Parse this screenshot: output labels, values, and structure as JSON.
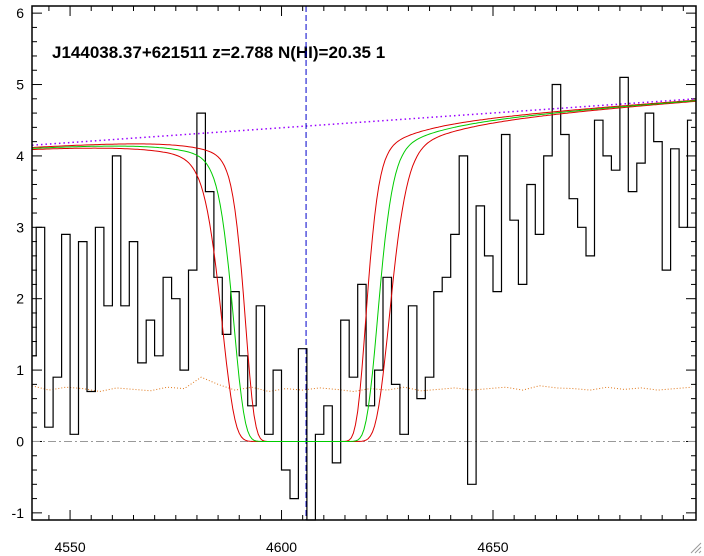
{
  "chart_data": {
    "type": "line",
    "title": "J144038.37+621511 z=2.788 N(HI)=20.35 1",
    "xlabel": "",
    "ylabel": "",
    "xlim": [
      4541,
      4698
    ],
    "ylim": [
      -1.1,
      6.1
    ],
    "x_ticks": [
      4550,
      4600,
      4650
    ],
    "y_ticks": [
      -1,
      0,
      1,
      2,
      3,
      4,
      5,
      6
    ],
    "grid": false,
    "legend": "none",
    "colors": {
      "flux": "#000000",
      "error": "#e07a1f",
      "continuum": "#9900ff",
      "model": "#00cc00",
      "model_bounds": "#dd0000",
      "center_marker": "#0000cc",
      "zero_line": "#999999"
    },
    "center_wavelength": 4605.8,
    "zero_level": 0,
    "continuum": {
      "x": [
        4541,
        4698
      ],
      "y": [
        4.15,
        4.8
      ]
    },
    "profile": {
      "center": 4605.7,
      "half_width_center": 8.6,
      "half_width_low": 7.2,
      "half_width_high": 10.0,
      "wing_scale": 4.2,
      "dlambda_boundary": 1.2
    },
    "flux": {
      "x": [
        4541,
        4543,
        4545,
        4547,
        4549,
        4551,
        4553,
        4555,
        4557,
        4559,
        4561,
        4563,
        4565,
        4567,
        4569,
        4571,
        4573,
        4575,
        4577,
        4579,
        4581,
        4583,
        4585,
        4587,
        4589,
        4591,
        4593,
        4595,
        4597,
        4599,
        4601,
        4603,
        4605,
        4607,
        4609,
        4611,
        4613,
        4615,
        4617,
        4619,
        4621,
        4623,
        4625,
        4627,
        4629,
        4631,
        4633,
        4635,
        4637,
        4639,
        4641,
        4643,
        4645,
        4647,
        4649,
        4651,
        4653,
        4655,
        4657,
        4659,
        4661,
        4663,
        4665,
        4667,
        4669,
        4671,
        4673,
        4675,
        4677,
        4679,
        4681,
        4683,
        4685,
        4687,
        4689,
        4691,
        4693,
        4695,
        4697
      ],
      "y": [
        1.2,
        3.0,
        0.2,
        0.9,
        2.9,
        0.1,
        2.8,
        0.7,
        3.0,
        1.9,
        4.0,
        1.9,
        2.8,
        1.1,
        1.7,
        1.2,
        2.3,
        2.0,
        1.0,
        2.4,
        4.6,
        3.5,
        2.3,
        1.5,
        2.1,
        1.2,
        0.5,
        1.9,
        0.1,
        1.0,
        -0.4,
        -0.8,
        1.3,
        -1.1,
        0.1,
        0.5,
        -0.3,
        1.7,
        0.9,
        2.2,
        0.5,
        1.0,
        2.3,
        0.8,
        0.1,
        1.9,
        0.6,
        0.9,
        2.1,
        2.3,
        2.9,
        4.0,
        -0.6,
        3.3,
        2.6,
        2.1,
        4.3,
        3.1,
        2.2,
        3.6,
        2.9,
        4.0,
        5.0,
        4.3,
        3.4,
        3.0,
        2.6,
        4.5,
        4.0,
        3.8,
        5.1,
        3.5,
        3.9,
        4.6,
        4.2,
        2.4,
        4.1,
        3.0,
        4.5
      ]
    },
    "error": {
      "x": [
        4541,
        4545,
        4549,
        4553,
        4557,
        4561,
        4565,
        4569,
        4573,
        4577,
        4581,
        4585,
        4589,
        4593,
        4597,
        4601,
        4605,
        4609,
        4613,
        4617,
        4621,
        4625,
        4629,
        4633,
        4637,
        4641,
        4645,
        4649,
        4653,
        4657,
        4661,
        4665,
        4669,
        4673,
        4677,
        4681,
        4685,
        4689,
        4693,
        4697
      ],
      "y": [
        0.78,
        0.72,
        0.76,
        0.74,
        0.7,
        0.75,
        0.73,
        0.71,
        0.76,
        0.74,
        0.9,
        0.8,
        0.72,
        0.76,
        0.7,
        0.74,
        0.72,
        0.75,
        0.73,
        0.7,
        0.74,
        0.72,
        0.76,
        0.71,
        0.73,
        0.75,
        0.72,
        0.74,
        0.76,
        0.72,
        0.78,
        0.75,
        0.74,
        0.72,
        0.76,
        0.73,
        0.75,
        0.72,
        0.74,
        0.76
      ]
    }
  }
}
